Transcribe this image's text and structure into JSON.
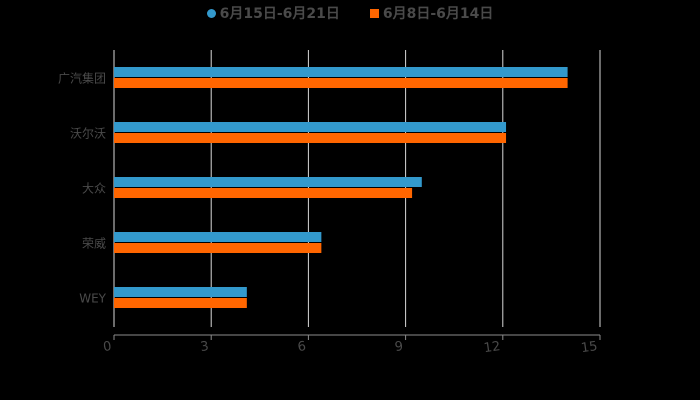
{
  "chart_data": {
    "type": "bar",
    "orientation": "horizontal",
    "title": "",
    "xlabel": "",
    "ylabel": "",
    "categories": [
      "广汽集团",
      "沃尔沃",
      "大众",
      "荣威",
      "WEY"
    ],
    "series": [
      {
        "name": "6月15日-6月21日",
        "color": "#3399cc",
        "marker": "circle",
        "values": [
          14,
          12.1,
          9.5,
          6.4,
          4.1
        ]
      },
      {
        "name": "6月8日-6月14日",
        "color": "#ff6600",
        "marker": "square",
        "values": [
          14,
          12.1,
          9.2,
          6.4,
          4.1
        ]
      }
    ],
    "xlim": [
      0,
      15
    ],
    "xticks": [
      0,
      3,
      6,
      9,
      12,
      15
    ],
    "grid": "vertical",
    "legend_position": "top"
  },
  "colors": {
    "background": "#000000",
    "grid": "#d9d9d9",
    "axis": "#8c8c8c",
    "text": "#4a4a4a"
  }
}
